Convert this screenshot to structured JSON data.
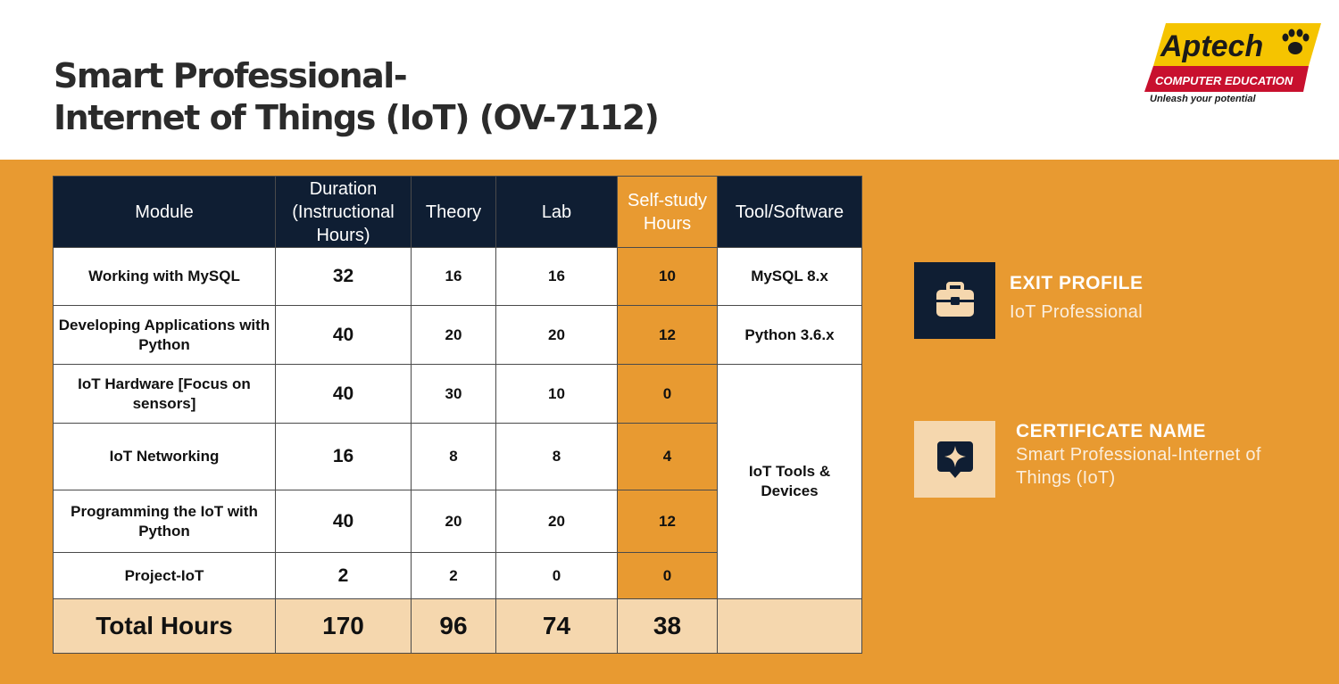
{
  "title": {
    "line1": "Smart Professional-",
    "line2": "Internet of Things (IoT) (OV-7112)"
  },
  "logo": {
    "brand": "Aptech",
    "subtitle": "COMPUTER EDUCATION",
    "tagline": "Unleash your potential",
    "colors": {
      "yellow": "#f5c400",
      "red": "#c8102e",
      "black": "#1a1a1a"
    }
  },
  "table": {
    "headers": {
      "module": "Module",
      "duration": [
        "Duration",
        "(Instructional",
        "Hours)"
      ],
      "theory": "Theory",
      "lab": "Lab",
      "selfstudy": [
        "Self-study",
        "Hours"
      ],
      "tool": "Tool/Software"
    },
    "rows": [
      {
        "module": "Working with MySQL",
        "duration": "32",
        "theory": "16",
        "lab": "16",
        "selfstudy": "10"
      },
      {
        "module": "Developing Applications with Python",
        "duration": "40",
        "theory": "20",
        "lab": "20",
        "selfstudy": "12"
      },
      {
        "module": "IoT Hardware [Focus on sensors]",
        "duration": "40",
        "theory": "30",
        "lab": "10",
        "selfstudy": "0"
      },
      {
        "module": "IoT Networking",
        "duration": "16",
        "theory": "8",
        "lab": "8",
        "selfstudy": "4"
      },
      {
        "module": "Programming the IoT with Python",
        "duration": "40",
        "theory": "20",
        "lab": "20",
        "selfstudy": "12"
      },
      {
        "module": "Project-IoT",
        "duration": "2",
        "theory": "2",
        "lab": "0",
        "selfstudy": "0"
      }
    ],
    "tools": {
      "mysql": "MySQL 8.x",
      "python": "Python 3.6.x",
      "iot": "IoT Tools & Devices"
    },
    "total": {
      "label": "Total Hours",
      "duration": "170",
      "theory": "96",
      "lab": "74",
      "selfstudy": "38"
    }
  },
  "exit_profile": {
    "label": "EXIT PROFILE",
    "value": "IoT Professional",
    "icon": "briefcase-icon"
  },
  "certificate": {
    "label": "CERTIFICATE NAME",
    "value": "Smart Professional-Internet of Things (IoT)",
    "icon": "sparkle-badge-icon"
  },
  "colors": {
    "orange": "#e89a31",
    "navy": "#0f1e33",
    "cream": "#f5d7ae",
    "title": "#2b2b2b"
  }
}
